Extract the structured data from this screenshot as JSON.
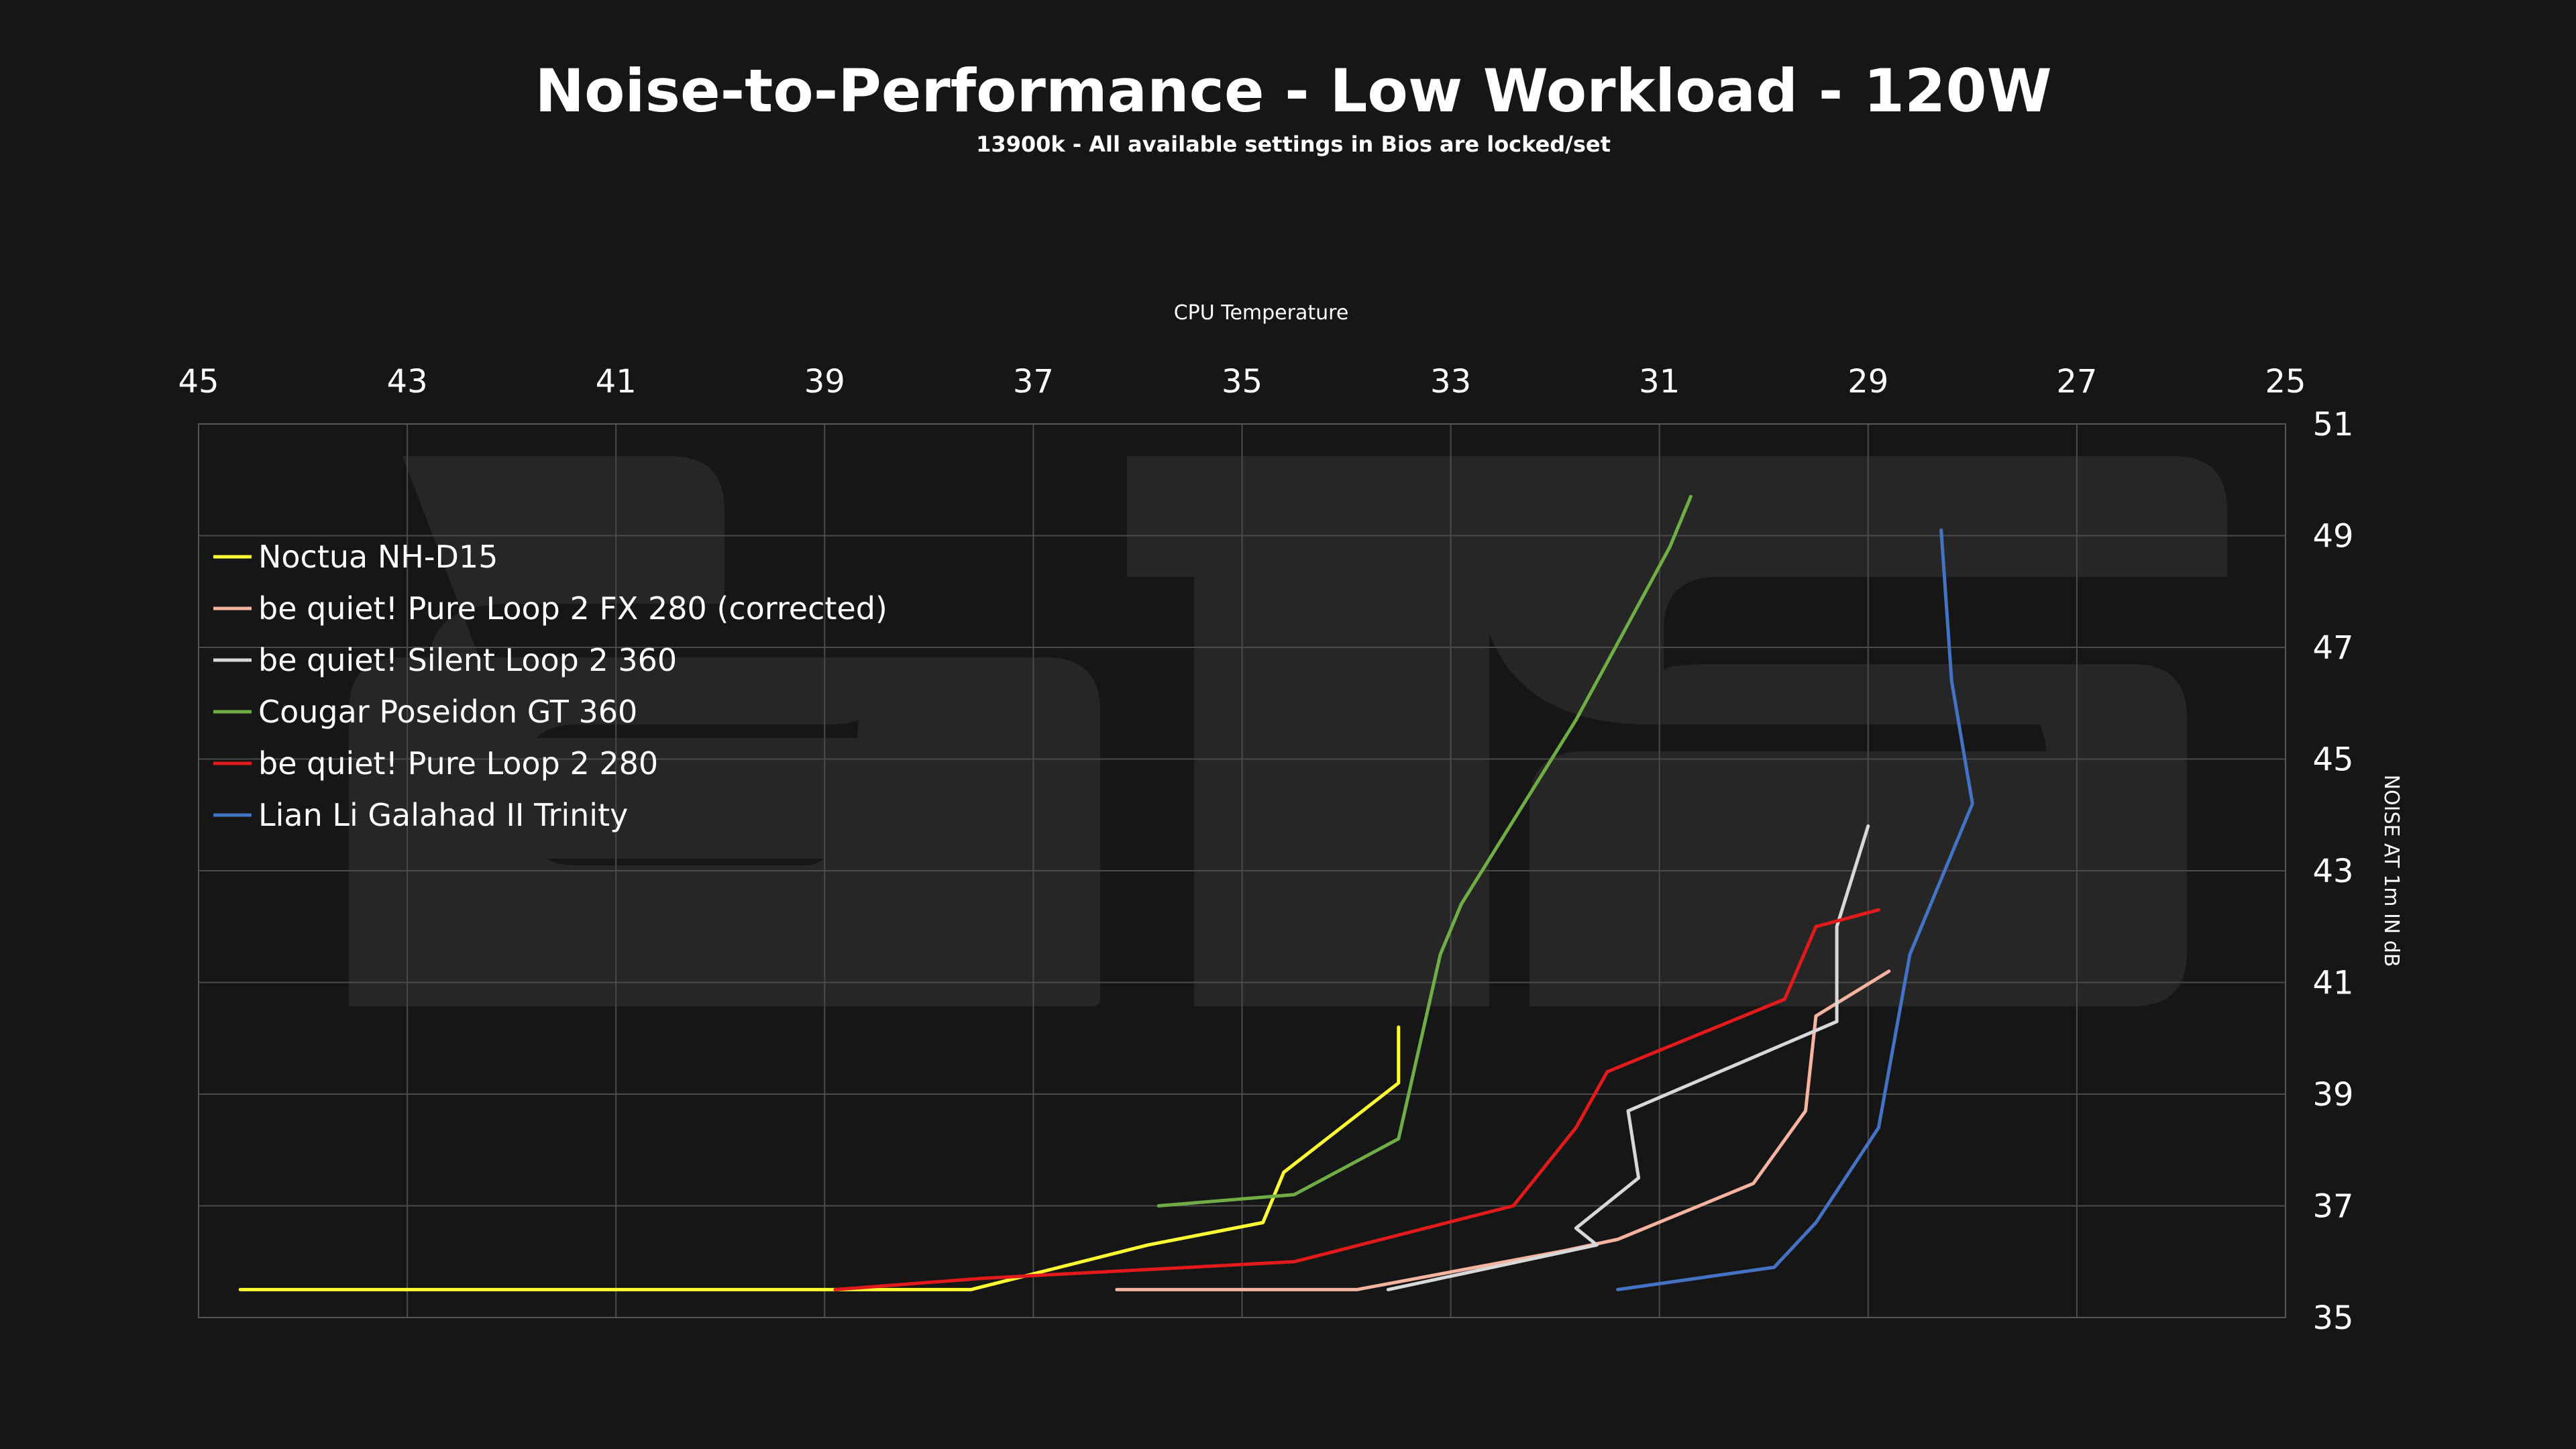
{
  "chart_data": {
    "type": "line",
    "title": "Noise-to-Performance - Low Workload - 120W",
    "subtitle": "13900k - All available settings in Bios are locked/set",
    "xlabel": "CPU Temperature",
    "ylabel": "NOISE AT 1m IN dB",
    "x_axis_position": "top",
    "x_reversed": true,
    "xlim": [
      45,
      25
    ],
    "x_ticks": [
      "45",
      "43",
      "41",
      "39",
      "37",
      "35",
      "33",
      "31",
      "29",
      "27",
      "25"
    ],
    "y_axis_position": "right",
    "ylim": [
      35,
      51
    ],
    "y_ticks": [
      "35",
      "37",
      "39",
      "41",
      "43",
      "45",
      "47",
      "49",
      "51"
    ],
    "grid": true,
    "legend_position": "top-left",
    "watermark": "STS",
    "series": [
      {
        "name": "Noctua NH-D15",
        "color": "#ffff33",
        "points": [
          [
            44.6,
            35.5
          ],
          [
            37.6,
            35.5
          ],
          [
            35.9,
            36.3
          ],
          [
            34.8,
            36.7
          ],
          [
            34.6,
            37.6
          ],
          [
            33.5,
            39.2
          ],
          [
            33.5,
            40.2
          ]
        ]
      },
      {
        "name": "be quiet! Pure Loop 2 FX 280 (corrected)",
        "color": "#f6b3a0",
        "points": [
          [
            36.2,
            35.5
          ],
          [
            33.9,
            35.5
          ],
          [
            31.9,
            36.2
          ],
          [
            31.4,
            36.4
          ],
          [
            30.1,
            37.4
          ],
          [
            29.6,
            38.7
          ],
          [
            29.5,
            40.4
          ],
          [
            28.8,
            41.2
          ]
        ]
      },
      {
        "name": "be quiet! Silent Loop 2 360",
        "color": "#d8d8d8",
        "points": [
          [
            33.6,
            35.5
          ],
          [
            31.6,
            36.3
          ],
          [
            31.8,
            36.6
          ],
          [
            31.2,
            37.5
          ],
          [
            31.3,
            38.7
          ],
          [
            29.3,
            40.3
          ],
          [
            29.3,
            42.0
          ],
          [
            29.0,
            43.8
          ]
        ]
      },
      {
        "name": "Cougar Poseidon GT 360",
        "color": "#70ad47",
        "points": [
          [
            35.8,
            37.0
          ],
          [
            34.5,
            37.2
          ],
          [
            33.5,
            38.2
          ],
          [
            33.1,
            41.5
          ],
          [
            32.9,
            42.4
          ],
          [
            31.8,
            45.7
          ],
          [
            30.9,
            48.8
          ],
          [
            30.7,
            49.7
          ]
        ]
      },
      {
        "name": "be quiet! Pure Loop 2 280",
        "color": "#e31a1c",
        "points": [
          [
            38.9,
            35.5
          ],
          [
            37.5,
            35.7
          ],
          [
            34.5,
            36.0
          ],
          [
            32.4,
            37.0
          ],
          [
            31.8,
            38.4
          ],
          [
            31.5,
            39.4
          ],
          [
            29.8,
            40.7
          ],
          [
            29.5,
            42.0
          ],
          [
            28.9,
            42.3
          ]
        ]
      },
      {
        "name": "Lian Li Galahad II Trinity",
        "color": "#4472c4",
        "points": [
          [
            31.4,
            35.5
          ],
          [
            29.9,
            35.9
          ],
          [
            29.5,
            36.7
          ],
          [
            28.9,
            38.4
          ],
          [
            28.6,
            41.5
          ],
          [
            28.0,
            44.2
          ],
          [
            28.2,
            46.4
          ],
          [
            28.3,
            49.1
          ]
        ]
      }
    ]
  }
}
